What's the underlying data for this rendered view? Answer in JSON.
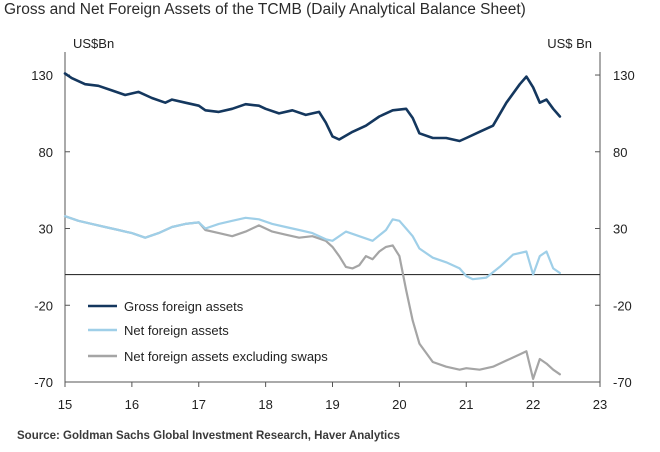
{
  "title": "Gross and Net Foreign Assets of the TCMB (Daily Analytical Balance Sheet)",
  "source": "Source: Goldman Sachs Global Investment Research, Haver Analytics",
  "chart_data": {
    "type": "line",
    "title": "Gross and Net Foreign Assets of the TCMB (Daily Analytical Balance Sheet)",
    "y_unit_left": "US$Bn",
    "y_unit_right": "US$ Bn",
    "xlim": [
      15,
      23
    ],
    "ylim": [
      -70,
      145
    ],
    "x_ticks": [
      "15",
      "16",
      "17",
      "18",
      "19",
      "20",
      "21",
      "22",
      "23"
    ],
    "x_tick_values": [
      15,
      16,
      17,
      18,
      19,
      20,
      21,
      22,
      23
    ],
    "y_ticks": [
      "130",
      "80",
      "30",
      "-20",
      "-70"
    ],
    "y_tick_values": [
      130,
      80,
      30,
      -20,
      -70
    ],
    "zero_line": 0,
    "grid": false,
    "legend_position": "bottom-left",
    "colors": {
      "gross": "#14375e",
      "net": "#9fcfe8",
      "net_ex_swaps": "#a5a5a5",
      "axis": "#555555"
    },
    "series": [
      {
        "name": "Gross foreign assets",
        "color": "#14375e",
        "x": [
          15.0,
          15.1,
          15.3,
          15.5,
          15.7,
          15.9,
          16.1,
          16.3,
          16.5,
          16.6,
          16.8,
          17.0,
          17.1,
          17.3,
          17.5,
          17.7,
          17.9,
          18.0,
          18.2,
          18.4,
          18.6,
          18.8,
          18.9,
          19.0,
          19.1,
          19.3,
          19.5,
          19.7,
          19.9,
          20.1,
          20.2,
          20.3,
          20.5,
          20.7,
          20.9,
          21.0,
          21.2,
          21.4,
          21.6,
          21.8,
          21.9,
          22.0,
          22.1,
          22.2,
          22.3,
          22.4
        ],
        "y": [
          131,
          128,
          124,
          123,
          120,
          117,
          119,
          115,
          112,
          114,
          112,
          110,
          107,
          106,
          108,
          111,
          110,
          108,
          105,
          107,
          104,
          106,
          99,
          90,
          88,
          93,
          97,
          103,
          107,
          108,
          102,
          92,
          89,
          89,
          87,
          89,
          93,
          97,
          112,
          124,
          129,
          122,
          112,
          114,
          108,
          103
        ]
      },
      {
        "name": "Net foreign assets",
        "color": "#9fcfe8",
        "x": [
          15.0,
          15.2,
          15.4,
          15.6,
          15.8,
          16.0,
          16.2,
          16.4,
          16.6,
          16.8,
          17.0,
          17.1,
          17.3,
          17.5,
          17.7,
          17.9,
          18.1,
          18.3,
          18.5,
          18.7,
          18.9,
          19.0,
          19.2,
          19.4,
          19.6,
          19.8,
          19.9,
          20.0,
          20.1,
          20.2,
          20.3,
          20.5,
          20.7,
          20.9,
          21.0,
          21.1,
          21.3,
          21.5,
          21.7,
          21.9,
          22.0,
          22.1,
          22.2,
          22.3,
          22.4
        ],
        "y": [
          38,
          35,
          33,
          31,
          29,
          27,
          24,
          27,
          31,
          33,
          34,
          30,
          33,
          35,
          37,
          36,
          33,
          31,
          29,
          27,
          23,
          22,
          28,
          25,
          22,
          29,
          36,
          35,
          30,
          25,
          17,
          11,
          8,
          4,
          -1,
          -3,
          -2,
          5,
          13,
          15,
          0,
          12,
          15,
          4,
          1
        ]
      },
      {
        "name": "Net foreign assets excluding swaps",
        "color": "#a5a5a5",
        "x": [
          15.0,
          15.2,
          15.4,
          15.6,
          15.8,
          16.0,
          16.2,
          16.4,
          16.6,
          16.8,
          17.0,
          17.1,
          17.3,
          17.5,
          17.7,
          17.9,
          18.1,
          18.3,
          18.5,
          18.7,
          18.9,
          19.0,
          19.1,
          19.2,
          19.3,
          19.4,
          19.5,
          19.6,
          19.7,
          19.8,
          19.9,
          20.0,
          20.1,
          20.2,
          20.3,
          20.5,
          20.7,
          20.9,
          21.0,
          21.2,
          21.4,
          21.6,
          21.8,
          21.9,
          22.0,
          22.1,
          22.2,
          22.3,
          22.4
        ],
        "y": [
          38,
          35,
          33,
          31,
          29,
          27,
          24,
          27,
          31,
          33,
          34,
          29,
          27,
          25,
          28,
          32,
          28,
          26,
          24,
          25,
          22,
          18,
          12,
          5,
          4,
          6,
          12,
          10,
          15,
          18,
          19,
          12,
          -10,
          -30,
          -45,
          -57,
          -60,
          -62,
          -61,
          -62,
          -60,
          -56,
          -52,
          -50,
          -68,
          -55,
          -58,
          -62,
          -65
        ]
      }
    ]
  }
}
